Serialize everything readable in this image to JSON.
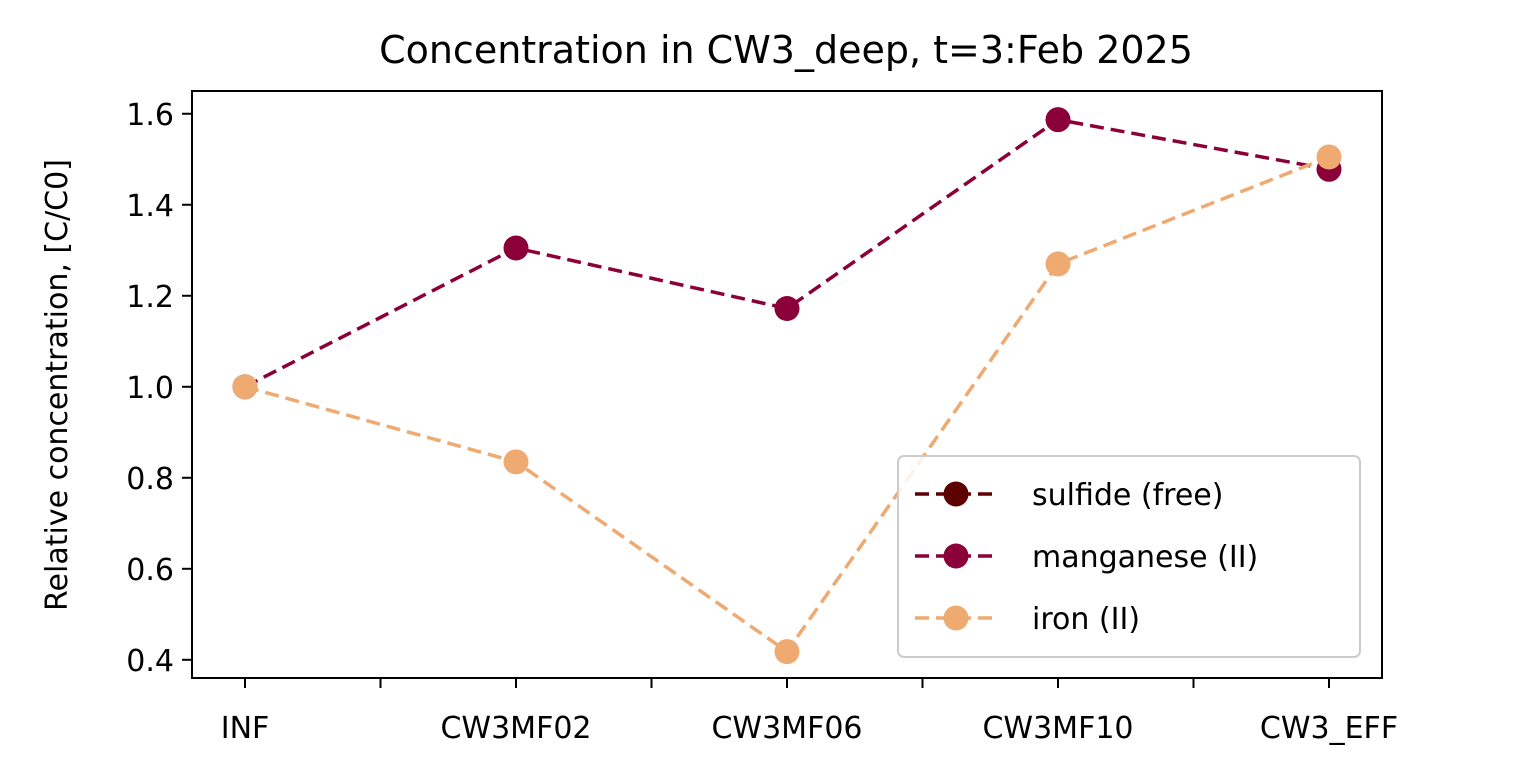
{
  "chart_data": {
    "type": "line",
    "title": "Concentration in CW3_deep, t=3:Feb 2025",
    "xlabel": "",
    "ylabel": "Relative concentration, [C/C0]",
    "categories": [
      "INF",
      "CW3MF02",
      "CW3MF06",
      "CW3MF10",
      "CW3_EFF"
    ],
    "ylim": [
      0.36,
      1.65
    ],
    "yticks": [
      0.4,
      0.6,
      0.8,
      1.0,
      1.2,
      1.4,
      1.6
    ],
    "ytick_labels": [
      "0.4",
      "0.6",
      "0.8",
      "1.0",
      "1.2",
      "1.4",
      "1.6"
    ],
    "grid": false,
    "legend_position": "lower-right",
    "series": [
      {
        "name": "sulfide (free)",
        "color": "#5c0000",
        "values": [
          null,
          null,
          null,
          null,
          null
        ]
      },
      {
        "name": "manganese (II)",
        "color": "#8b0038",
        "values": [
          1.0,
          1.305,
          1.172,
          1.587,
          1.478
        ]
      },
      {
        "name": "iron (II)",
        "color": "#efaa72",
        "values": [
          1.0,
          0.835,
          0.418,
          1.27,
          1.505
        ]
      }
    ]
  }
}
